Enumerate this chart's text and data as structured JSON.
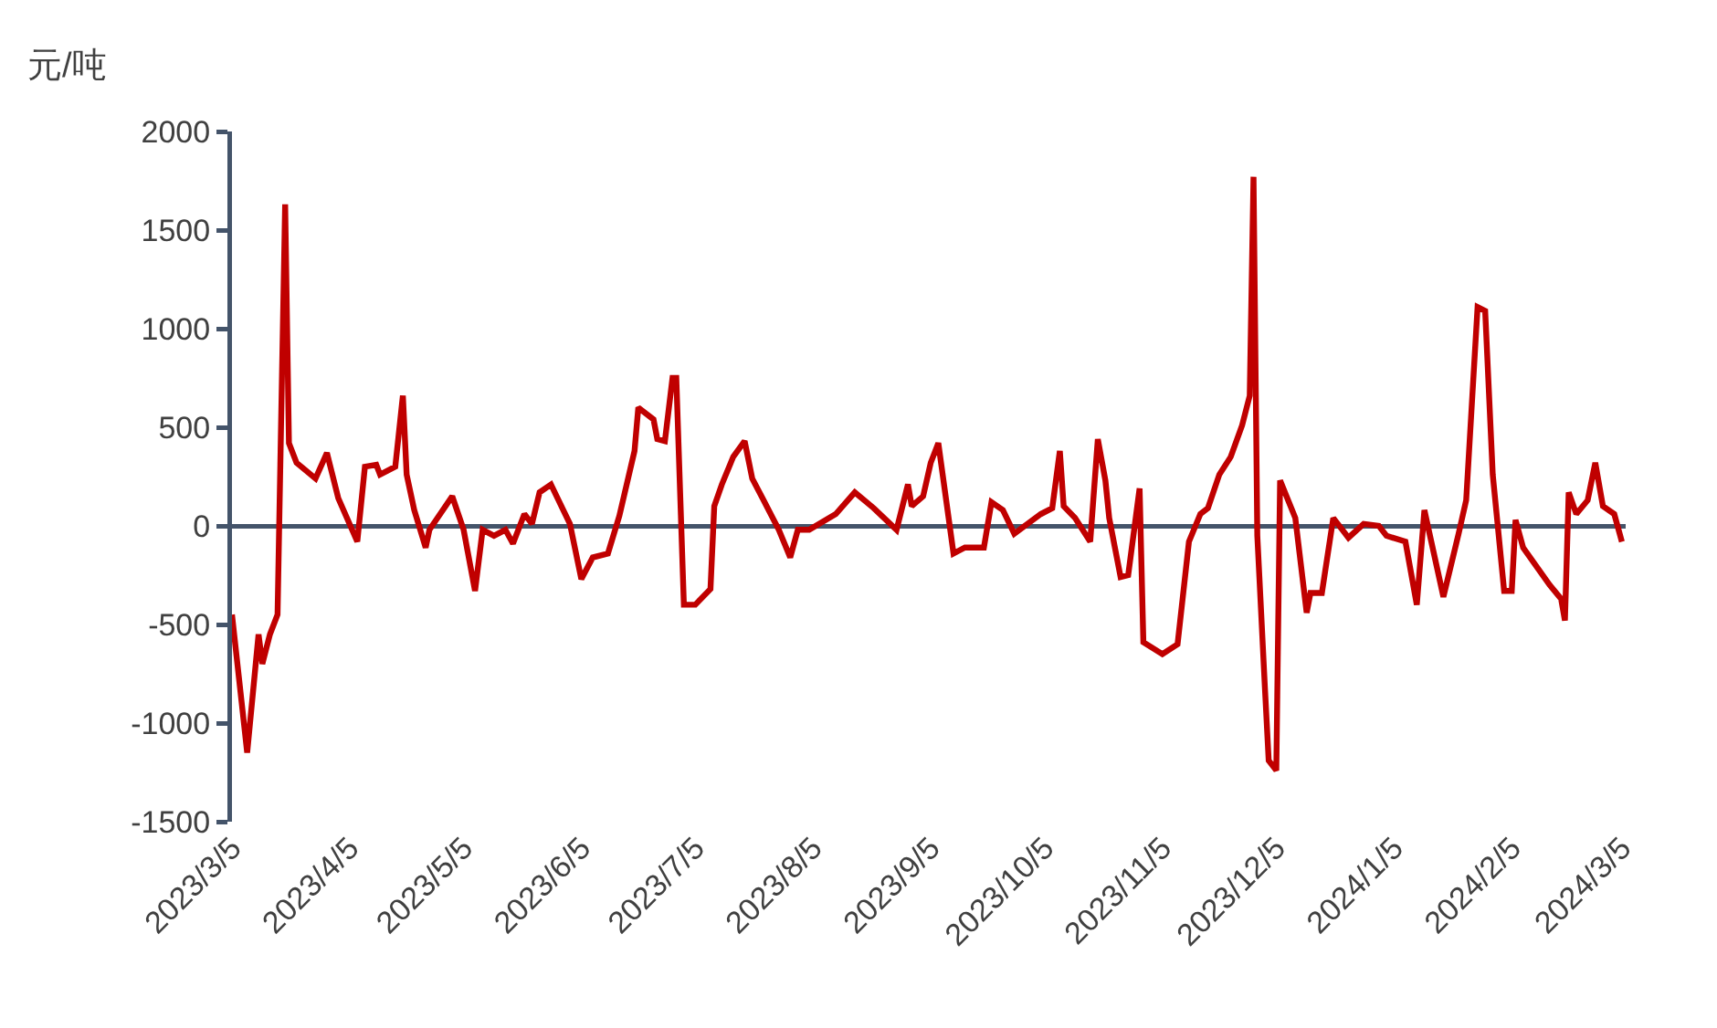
{
  "chart_data": {
    "type": "line",
    "ylabel": "元/吨",
    "x": [
      "2023-03-05",
      "2023-03-09",
      "2023-03-12",
      "2023-03-13",
      "2023-03-15",
      "2023-03-17",
      "2023-03-19",
      "2023-03-20",
      "2023-03-22",
      "2023-03-27",
      "2023-03-30",
      "2023-04-02",
      "2023-04-07",
      "2023-04-09",
      "2023-04-12",
      "2023-04-13",
      "2023-04-17",
      "2023-04-19",
      "2023-04-20",
      "2023-04-22",
      "2023-04-25",
      "2023-04-26",
      "2023-05-02",
      "2023-05-05",
      "2023-05-08",
      "2023-05-10",
      "2023-05-13",
      "2023-05-16",
      "2023-05-18",
      "2023-05-21",
      "2023-05-23",
      "2023-05-25",
      "2023-05-28",
      "2023-05-31",
      "2023-06-02",
      "2023-06-05",
      "2023-06-08",
      "2023-06-12",
      "2023-06-15",
      "2023-06-19",
      "2023-06-20",
      "2023-06-24",
      "2023-06-25",
      "2023-06-27",
      "2023-06-29",
      "2023-06-30",
      "2023-07-02",
      "2023-07-05",
      "2023-07-09",
      "2023-07-10",
      "2023-07-12",
      "2023-07-15",
      "2023-07-18",
      "2023-07-20",
      "2023-07-23",
      "2023-07-27",
      "2023-07-30",
      "2023-08-01",
      "2023-08-04",
      "2023-08-11",
      "2023-08-16",
      "2023-08-21",
      "2023-08-27",
      "2023-08-30",
      "2023-08-31",
      "2023-09-03",
      "2023-09-05",
      "2023-09-07",
      "2023-09-11",
      "2023-09-14",
      "2023-09-19",
      "2023-09-21",
      "2023-09-24",
      "2023-09-27",
      "2023-10-04",
      "2023-10-07",
      "2023-10-09",
      "2023-10-10",
      "2023-10-13",
      "2023-10-17",
      "2023-10-19",
      "2023-10-21",
      "2023-10-22",
      "2023-10-25",
      "2023-10-27",
      "2023-10-30",
      "2023-10-31",
      "2023-11-05",
      "2023-11-09",
      "2023-11-12",
      "2023-11-15",
      "2023-11-17",
      "2023-11-20",
      "2023-11-23",
      "2023-11-26",
      "2023-11-28",
      "2023-11-29",
      "2023-11-30",
      "2023-12-02",
      "2023-12-03",
      "2023-12-05",
      "2023-12-06",
      "2023-12-10",
      "2023-12-13",
      "2023-12-14",
      "2023-12-17",
      "2023-12-20",
      "2023-12-24",
      "2023-12-28",
      "2024-01-01",
      "2024-01-03",
      "2024-01-08",
      "2024-01-11",
      "2024-01-13",
      "2024-01-18",
      "2024-01-22",
      "2024-01-24",
      "2024-01-27",
      "2024-01-29",
      "2024-01-31",
      "2024-02-03",
      "2024-02-05",
      "2024-02-06",
      "2024-02-08",
      "2024-02-15",
      "2024-02-18",
      "2024-02-19",
      "2024-02-20",
      "2024-02-22",
      "2024-02-25",
      "2024-02-27",
      "2024-02-29",
      "2024-03-03",
      "2024-03-05"
    ],
    "series": [
      {
        "color": "#c00000",
        "values": [
          -450,
          -1150,
          -550,
          -700,
          -550,
          -450,
          1630,
          420,
          320,
          240,
          370,
          140,
          -80,
          300,
          310,
          260,
          300,
          660,
          260,
          80,
          -110,
          -20,
          150,
          -20,
          -330,
          -20,
          -50,
          -20,
          -90,
          60,
          10,
          170,
          210,
          90,
          10,
          -270,
          -160,
          -140,
          50,
          380,
          600,
          540,
          440,
          430,
          750,
          750,
          -400,
          -400,
          -320,
          100,
          210,
          350,
          430,
          240,
          130,
          -20,
          -160,
          -20,
          -20,
          60,
          170,
          90,
          -20,
          210,
          100,
          150,
          320,
          420,
          -140,
          -110,
          -110,
          120,
          80,
          -40,
          60,
          90,
          380,
          100,
          40,
          -80,
          440,
          230,
          40,
          -260,
          -250,
          190,
          -590,
          -650,
          -600,
          -80,
          60,
          90,
          260,
          350,
          510,
          660,
          1770,
          -50,
          -820,
          -1190,
          -1240,
          230,
          40,
          -440,
          -340,
          -340,
          40,
          -60,
          10,
          0,
          -50,
          -80,
          -400,
          80,
          -360,
          -40,
          130,
          1110,
          1090,
          260,
          -330,
          -330,
          30,
          -110,
          -300,
          -370,
          -480,
          170,
          60,
          130,
          320,
          100,
          60,
          -80
        ]
      }
    ],
    "xlim": [
      "2023-03-05",
      "2024-03-06"
    ],
    "xticks": [
      {
        "value": "2023-03-05",
        "label": "2023/3/5"
      },
      {
        "value": "2023-04-05",
        "label": "2023/4/5"
      },
      {
        "value": "2023-05-05",
        "label": "2023/5/5"
      },
      {
        "value": "2023-06-05",
        "label": "2023/6/5"
      },
      {
        "value": "2023-07-05",
        "label": "2023/7/5"
      },
      {
        "value": "2023-08-05",
        "label": "2023/8/5"
      },
      {
        "value": "2023-09-05",
        "label": "2023/9/5"
      },
      {
        "value": "2023-10-05",
        "label": "2023/10/5"
      },
      {
        "value": "2023-11-05",
        "label": "2023/11/5"
      },
      {
        "value": "2023-12-05",
        "label": "2023/12/5"
      },
      {
        "value": "2024-01-05",
        "label": "2024/1/5"
      },
      {
        "value": "2024-02-05",
        "label": "2024/2/5"
      },
      {
        "value": "2024-03-05",
        "label": "2024/3/5"
      }
    ],
    "ylim": [
      -1500,
      2000
    ],
    "yticks": [
      -1500,
      -1000,
      -500,
      0,
      500,
      1000,
      1500,
      2000
    ],
    "marker": "none",
    "line_style": "solid"
  }
}
